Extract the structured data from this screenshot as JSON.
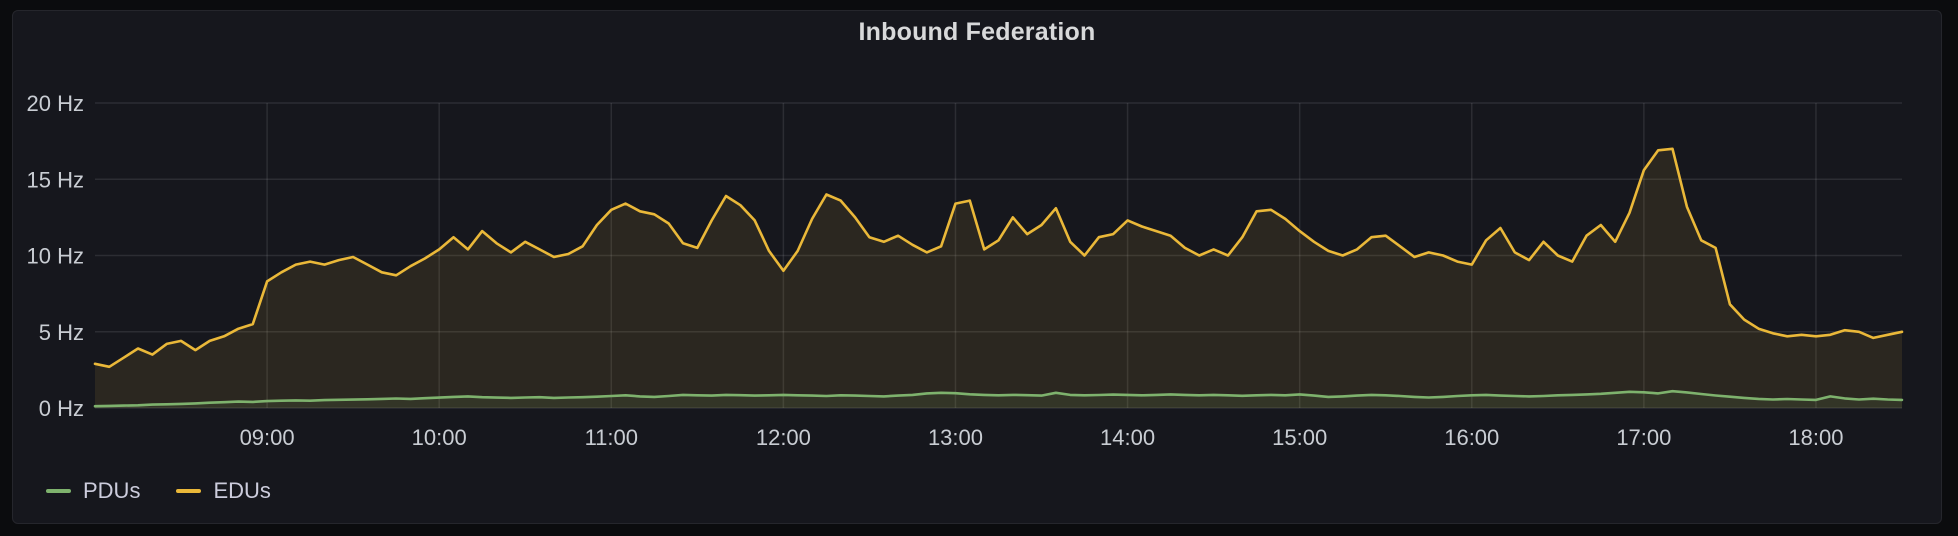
{
  "panel": {
    "title": "Inbound Federation"
  },
  "legend": {
    "items": [
      {
        "label": "PDUs",
        "color": "#7EB26D"
      },
      {
        "label": "EDUs",
        "color": "#EAB839"
      }
    ]
  },
  "chart_data": {
    "type": "area",
    "title": "Inbound Federation",
    "grid": true,
    "legend_position": "bottom-left",
    "x_axis": {
      "unit": "time",
      "start": "08:00",
      "end": "18:30",
      "step_minutes": 5,
      "ticks": [
        {
          "label": "09:00"
        },
        {
          "label": "10:00"
        },
        {
          "label": "11:00"
        },
        {
          "label": "12:00"
        },
        {
          "label": "13:00"
        },
        {
          "label": "14:00"
        },
        {
          "label": "15:00"
        },
        {
          "label": "16:00"
        },
        {
          "label": "17:00"
        },
        {
          "label": "18:00"
        }
      ]
    },
    "y_axis": {
      "unit": "Hz",
      "min": 0,
      "max": 20,
      "ticks": [
        {
          "label": "0 Hz",
          "value": 0
        },
        {
          "label": "5 Hz",
          "value": 5
        },
        {
          "label": "10 Hz",
          "value": 10
        },
        {
          "label": "15 Hz",
          "value": 15
        },
        {
          "label": "20 Hz",
          "value": 20
        }
      ]
    },
    "series": [
      {
        "name": "PDUs",
        "color": "#7EB26D",
        "fill_opacity": 0.1,
        "values": [
          0.12,
          0.14,
          0.16,
          0.18,
          0.22,
          0.24,
          0.27,
          0.3,
          0.35,
          0.38,
          0.42,
          0.4,
          0.45,
          0.48,
          0.5,
          0.48,
          0.52,
          0.54,
          0.55,
          0.57,
          0.6,
          0.62,
          0.6,
          0.64,
          0.68,
          0.73,
          0.76,
          0.71,
          0.68,
          0.66,
          0.69,
          0.71,
          0.66,
          0.69,
          0.71,
          0.74,
          0.79,
          0.83,
          0.76,
          0.73,
          0.79,
          0.86,
          0.83,
          0.81,
          0.86,
          0.84,
          0.81,
          0.83,
          0.86,
          0.83,
          0.81,
          0.79,
          0.83,
          0.81,
          0.79,
          0.76,
          0.81,
          0.86,
          0.96,
          1.0,
          0.97,
          0.9,
          0.86,
          0.83,
          0.86,
          0.84,
          0.81,
          1.0,
          0.86,
          0.83,
          0.85,
          0.88,
          0.86,
          0.83,
          0.86,
          0.89,
          0.86,
          0.83,
          0.86,
          0.83,
          0.8,
          0.83,
          0.86,
          0.83,
          0.89,
          0.81,
          0.73,
          0.76,
          0.81,
          0.86,
          0.83,
          0.79,
          0.73,
          0.69,
          0.73,
          0.79,
          0.83,
          0.86,
          0.81,
          0.79,
          0.76,
          0.79,
          0.83,
          0.86,
          0.89,
          0.93,
          1.0,
          1.06,
          1.03,
          0.96,
          1.1,
          1.02,
          0.92,
          0.82,
          0.74,
          0.66,
          0.6,
          0.56,
          0.59,
          0.56,
          0.53,
          0.76,
          0.63,
          0.56,
          0.61,
          0.56,
          0.53
        ]
      },
      {
        "name": "EDUs",
        "color": "#EAB839",
        "fill_opacity": 0.1,
        "values": [
          2.9,
          2.7,
          3.3,
          3.9,
          3.5,
          4.2,
          4.4,
          3.8,
          4.4,
          4.7,
          5.2,
          5.5,
          8.3,
          8.9,
          9.4,
          9.6,
          9.4,
          9.7,
          9.9,
          9.4,
          8.9,
          8.7,
          9.3,
          9.8,
          10.4,
          11.2,
          10.4,
          11.6,
          10.8,
          10.2,
          10.9,
          10.4,
          9.9,
          10.1,
          10.6,
          12.0,
          13.0,
          13.4,
          12.9,
          12.7,
          12.1,
          10.8,
          10.5,
          12.3,
          13.9,
          13.3,
          12.3,
          10.3,
          9.0,
          10.3,
          12.4,
          14.0,
          13.6,
          12.5,
          11.2,
          10.9,
          11.3,
          10.7,
          10.2,
          10.6,
          13.4,
          13.6,
          10.4,
          11.0,
          12.5,
          11.4,
          12.0,
          13.1,
          10.9,
          10.0,
          11.2,
          11.4,
          12.3,
          11.9,
          11.6,
          11.3,
          10.5,
          10.0,
          10.4,
          10.0,
          11.2,
          12.9,
          13.0,
          12.4,
          11.6,
          10.9,
          10.3,
          10.0,
          10.4,
          11.2,
          11.3,
          10.6,
          9.9,
          10.2,
          10.0,
          9.6,
          9.4,
          11.0,
          11.8,
          10.2,
          9.7,
          10.9,
          10.0,
          9.6,
          11.3,
          12.0,
          10.9,
          12.8,
          15.6,
          16.9,
          17.0,
          13.2,
          11.0,
          10.5,
          6.8,
          5.8,
          5.2,
          4.9,
          4.7,
          4.8,
          4.7,
          4.8,
          5.1,
          5.0,
          4.6,
          4.8,
          5.0
        ]
      }
    ]
  },
  "colors": {
    "page_bg": "#0b0c0e",
    "panel_bg": "#16171d",
    "panel_border": "#25262c",
    "grid": "rgba(204,208,216,0.12)",
    "text": "#ccccdc",
    "tick_text": "#c9cdd3",
    "title": "#d8d9da"
  }
}
